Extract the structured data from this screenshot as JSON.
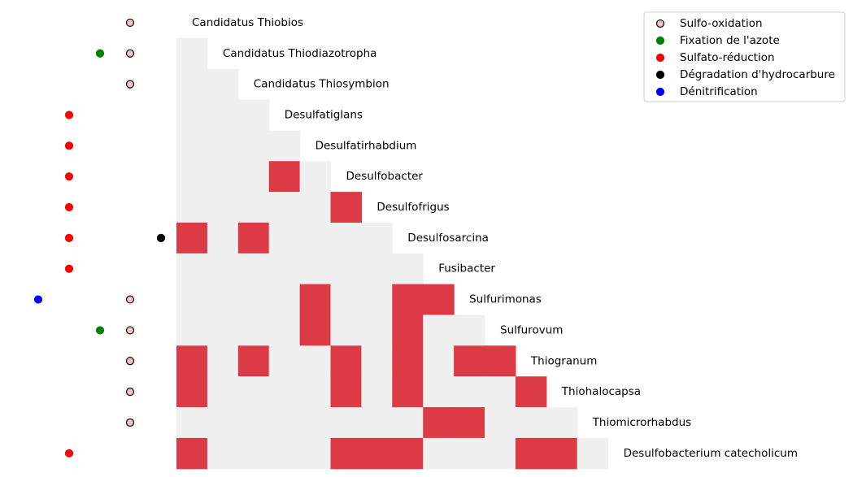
{
  "chart_data": {
    "type": "heatmap",
    "title": "",
    "xlabel": "",
    "ylabel": "",
    "rows": [
      "Candidatus Thiobios",
      "Candidatus Thiodiazotropha",
      "Candidatus Thiosymbion",
      "Desulfatiglans",
      "Desulfatirhabdium",
      "Desulfobacter",
      "Desulfofrigus",
      "Desulfosarcina",
      "Fusibacter",
      "Sulfurimonas",
      "Sulfurovum",
      "Thiogranum",
      "Thiohalocapsa",
      "Thiomicrorhabdus",
      "Desulfobacterium catecholicum"
    ],
    "columns": 15,
    "matrix": [
      [],
      [
        0
      ],
      [
        0,
        0
      ],
      [
        0,
        0,
        0
      ],
      [
        0,
        0,
        0,
        0
      ],
      [
        0,
        0,
        0,
        1,
        0
      ],
      [
        0,
        0,
        0,
        0,
        0,
        1
      ],
      [
        1,
        0,
        1,
        0,
        0,
        0,
        0
      ],
      [
        0,
        0,
        0,
        0,
        0,
        0,
        0,
        0
      ],
      [
        0,
        0,
        0,
        0,
        1,
        0,
        0,
        1,
        1
      ],
      [
        0,
        0,
        0,
        0,
        1,
        0,
        0,
        1,
        0,
        0
      ],
      [
        1,
        0,
        1,
        0,
        0,
        1,
        0,
        1,
        0,
        1,
        1
      ],
      [
        1,
        0,
        0,
        0,
        0,
        1,
        0,
        1,
        0,
        0,
        0,
        1
      ],
      [
        0,
        0,
        0,
        0,
        0,
        0,
        0,
        0,
        1,
        1,
        0,
        0,
        0
      ],
      [
        1,
        0,
        0,
        0,
        0,
        1,
        1,
        1,
        0,
        0,
        0,
        1,
        1,
        0
      ]
    ],
    "colors": {
      "present": "#dc3b46",
      "absent": "#f0f0f0"
    },
    "traits": [
      {
        "name": "Sulfo-oxidation",
        "color": "#f4c2c2",
        "edge": "#000000",
        "column": 3,
        "rows": [
          0,
          1,
          2,
          9,
          10,
          11,
          12,
          13
        ]
      },
      {
        "name": "Fixation de l'azote",
        "color": "#008000",
        "edge": "#008000",
        "column": 2,
        "rows": [
          1,
          10
        ]
      },
      {
        "name": "Sulfato-réduction",
        "color": "#ff0000",
        "edge": "#ff0000",
        "column": 1,
        "rows": [
          3,
          4,
          5,
          6,
          7,
          8,
          14
        ]
      },
      {
        "name": "Dégradation d'hydrocarbure",
        "color": "#000000",
        "edge": "#000000",
        "column": 4,
        "rows": [
          7
        ]
      },
      {
        "name": "Dénitrification",
        "color": "#0000ff",
        "edge": "#0000ff",
        "column": 0,
        "rows": [
          9
        ]
      }
    ],
    "legend_position": "top-right",
    "grid": false
  }
}
